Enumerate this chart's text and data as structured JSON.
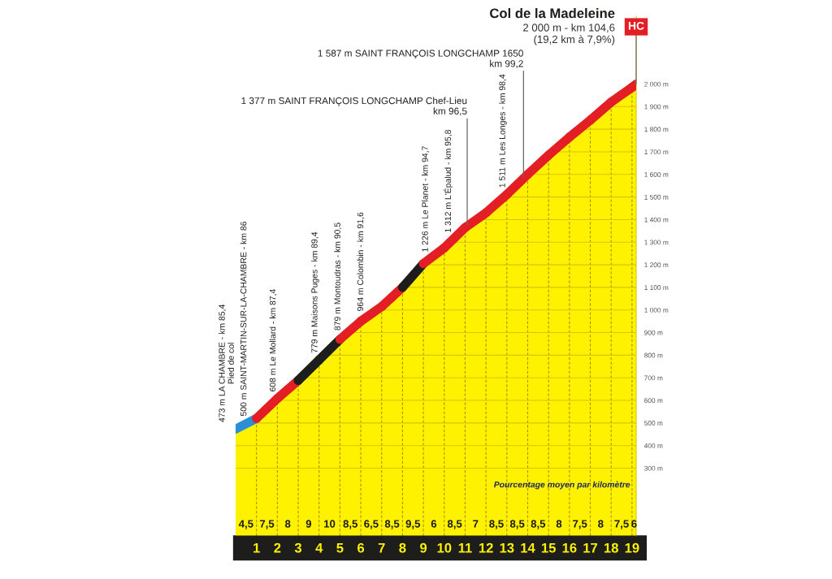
{
  "chart_data": {
    "type": "area",
    "title": "Col de la Madeleine",
    "subtitle": "2 000 m - km 104,6\n(19,2 km à 7,9%)",
    "series": [
      {
        "color": "#fff200",
        "colors": [
          "#2b8fd6",
          "#2b8fd6",
          "#e31e24",
          "#e31e24",
          "#1d1d1b",
          "#1d1d1b",
          "#e31e24",
          "#e31e24",
          "#e31e24",
          "#1d1d1b",
          "#e31e24",
          "#e31e24",
          "#e31e24",
          "#e31e24",
          "#e31e24",
          "#e31e24",
          "#e31e24",
          "#e31e24",
          "#e31e24",
          "#e31e24",
          "#e31e24"
        ],
        "x": [
          0,
          1,
          2,
          3,
          4,
          5,
          6,
          7,
          8,
          9,
          10,
          11,
          12,
          13,
          14,
          15,
          16,
          17,
          18,
          19,
          19.2
        ],
        "values": [
          473,
          520,
          608,
          688,
          779,
          870,
          950,
          1015,
          1100,
          1205,
          1275,
          1365,
          1430,
          1511,
          1600,
          1685,
          1765,
          1840,
          1920,
          1985,
          2000
        ]
      }
    ],
    "xlim": [
      0,
      19.2
    ],
    "xticks": [
      1,
      2,
      3,
      4,
      5,
      6,
      7,
      8,
      9,
      10,
      11,
      12,
      13,
      14,
      15,
      16,
      17,
      18,
      19
    ],
    "ylim": [
      0,
      2300
    ],
    "yticks": [
      {
        "value": 300,
        "label": "300 m"
      },
      {
        "value": 400,
        "label": "400 m"
      },
      {
        "value": 500,
        "label": "500 m"
      },
      {
        "value": 600,
        "label": "600 m"
      },
      {
        "value": 700,
        "label": "700 m"
      },
      {
        "value": 800,
        "label": "800 m"
      },
      {
        "value": 900,
        "label": "900 m"
      },
      {
        "value": 1000,
        "label": "1 000 m"
      },
      {
        "value": 1100,
        "label": "1 100 m"
      },
      {
        "value": 1200,
        "label": "1 200 m"
      },
      {
        "value": 1300,
        "label": "1 300 m"
      },
      {
        "value": 1400,
        "label": "1 400 m"
      },
      {
        "value": 1500,
        "label": "1 500 m"
      },
      {
        "value": 1600,
        "label": "1 600 m"
      },
      {
        "value": 1700,
        "label": "1 700 m"
      },
      {
        "value": 1800,
        "label": "1 800 m"
      },
      {
        "value": 1900,
        "label": "1 900 m"
      },
      {
        "value": 2000,
        "label": "2 000 m"
      }
    ],
    "grid": true,
    "annotations": [
      {
        "text": "473 m LA CHAMBRE - km 85,4\nPied de col",
        "x": 0,
        "y": 473
      },
      {
        "text": "500 m SAINT-MARTIN-SUR-LA-CHAMBRE - km 86",
        "x": 0.6,
        "y": 500
      },
      {
        "text": "608 m Le Mollard - km 87,4",
        "x": 2,
        "y": 608
      },
      {
        "text": "779 m Maisons Puges - km 89,4",
        "x": 4,
        "y": 779
      },
      {
        "text": "879 m Montoudras - km 90,5",
        "x": 5.1,
        "y": 879
      },
      {
        "text": "964 m Colombin - km 91,6",
        "x": 6.2,
        "y": 964
      },
      {
        "text": "1 226 m Le Planet - km 94,7",
        "x": 9.3,
        "y": 1226
      },
      {
        "text": "1 312 m L'Épalud - km 95,8",
        "x": 10.4,
        "y": 1312
      },
      {
        "text": "1 377 m SAINT FRANÇOIS LONGCHAMP Chef-Lieu\nkm 96,5",
        "x": 11.1,
        "y": 1377
      },
      {
        "text": "1 511 m Les Longes - km 98,4",
        "x": 13,
        "y": 1511
      },
      {
        "text": "1 587 m SAINT FRANÇOIS LONGCHAMP 1650\nkm 99,2",
        "x": 13.8,
        "y": 1587
      },
      {
        "text": "HC",
        "x": 19.2,
        "y": 2000
      },
      "4,5",
      "7,5",
      "8",
      "9",
      "10",
      "8,5",
      "6,5",
      "8,5",
      "9,5",
      "6",
      "8,5",
      "7",
      "8,5",
      "8,5",
      "8,5",
      "8",
      "7,5",
      "8",
      "7,5",
      "6",
      "Pourcentage moyen par kilomètre"
    ]
  }
}
